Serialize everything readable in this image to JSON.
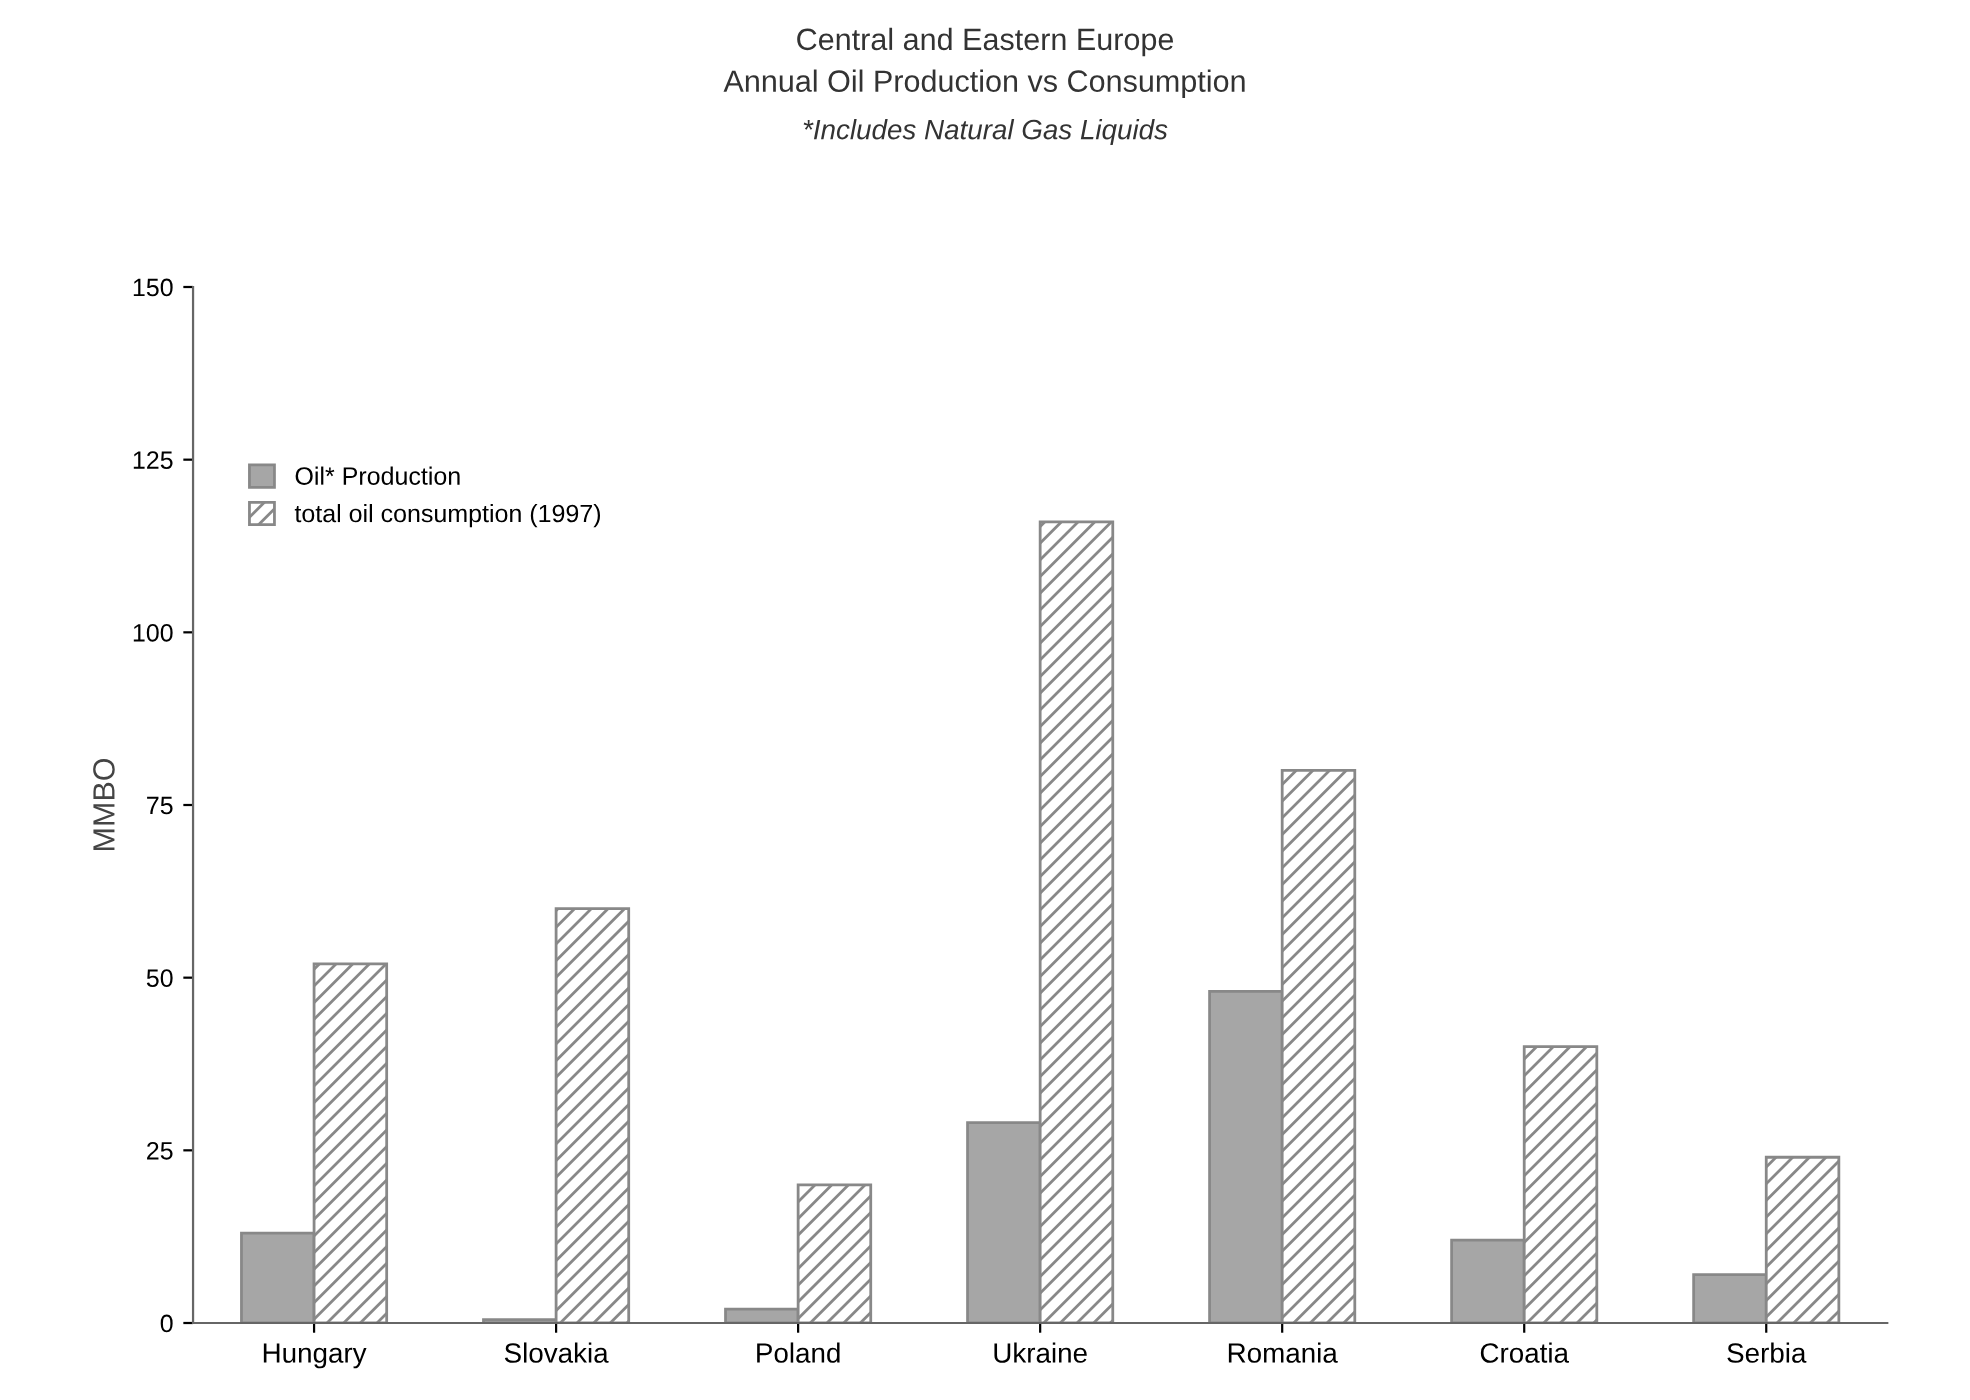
{
  "chart_data": {
    "type": "bar",
    "title": "Central and Eastern Europe\nAnnual Oil Production vs Consumption",
    "subtitle": "*Includes Natural Gas Liquids",
    "ylabel": "MMBO",
    "categories": [
      "Hungary",
      "Slovakia",
      "Poland",
      "Ukraine",
      "Romania",
      "Croatia",
      "Serbia"
    ],
    "series": [
      {
        "name": "Oil* Production",
        "color": "#a6a6a6",
        "values": [
          13,
          0.5,
          2,
          29,
          48,
          12,
          7
        ]
      },
      {
        "name": "total oil consumption (1997)",
        "color": "#888888",
        "values": [
          52,
          60,
          20,
          116,
          80,
          40,
          24
        ]
      }
    ],
    "ylim": [
      0,
      150
    ],
    "yticks": [
      0,
      25,
      50,
      75,
      100,
      125,
      150
    ],
    "grid": false,
    "legend": "top left"
  }
}
